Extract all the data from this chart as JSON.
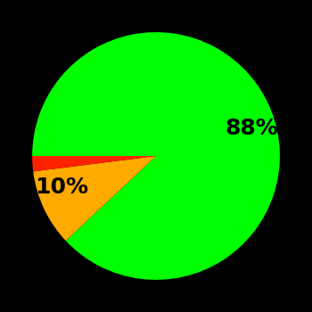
{
  "slices": [
    88,
    10,
    2
  ],
  "colors": [
    "#00ff00",
    "#ffaa00",
    "#ff2200"
  ],
  "labels": [
    "88%",
    "10%",
    ""
  ],
  "background_color": "#000000",
  "label_color": "#000000",
  "label_fontsize": 18,
  "label_fontweight": "bold",
  "startangle": 180,
  "figsize": [
    3.5,
    3.5
  ],
  "dpi": 100,
  "labeldistance": 0.6
}
